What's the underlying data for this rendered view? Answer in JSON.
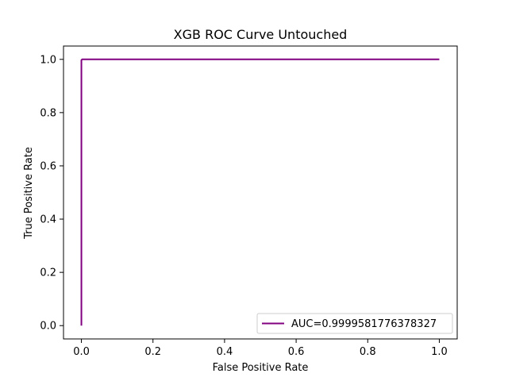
{
  "chart_data": {
    "type": "line",
    "title": "XGB ROC Curve Untouched",
    "xlabel": "False Positive Rate",
    "ylabel": "True Positive Rate",
    "xlim": [
      -0.05,
      1.05
    ],
    "ylim": [
      -0.05,
      1.05
    ],
    "xticks": [
      0.0,
      0.2,
      0.4,
      0.6,
      0.8,
      1.0
    ],
    "yticks": [
      0.0,
      0.2,
      0.4,
      0.6,
      0.8,
      1.0
    ],
    "xtick_labels": [
      "0.0",
      "0.2",
      "0.4",
      "0.6",
      "0.8",
      "1.0"
    ],
    "ytick_labels": [
      "0.0",
      "0.2",
      "0.4",
      "0.6",
      "0.8",
      "1.0"
    ],
    "grid": false,
    "legend_position": "bottom-right",
    "series": [
      {
        "name": "AUC=0.9999581776378327",
        "color": "#800080",
        "x": [
          0.0,
          0.0,
          0.002,
          1.0
        ],
        "y": [
          0.0,
          0.997,
          1.0,
          1.0
        ]
      }
    ]
  }
}
